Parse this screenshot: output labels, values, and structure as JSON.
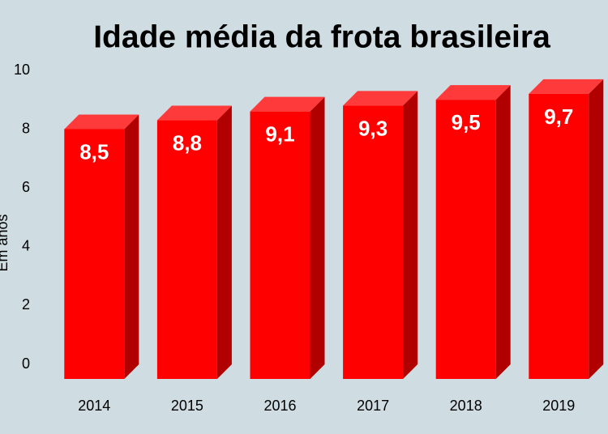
{
  "chart_data": {
    "type": "bar3d",
    "title": "Idade média da frota brasileira",
    "y_label": "Em anos",
    "categories": [
      "2014",
      "2015",
      "2016",
      "2017",
      "2018",
      "2019"
    ],
    "values": [
      8.5,
      8.8,
      9.1,
      9.3,
      9.5,
      9.7
    ],
    "value_labels": [
      "8,5",
      "8,8",
      "9,1",
      "9,3",
      "9,5",
      "9,7"
    ],
    "color": "#ff0000",
    "ylim": [
      0,
      10
    ],
    "yticks": [
      0,
      2,
      4,
      6,
      8,
      10
    ],
    "grid": false
  }
}
